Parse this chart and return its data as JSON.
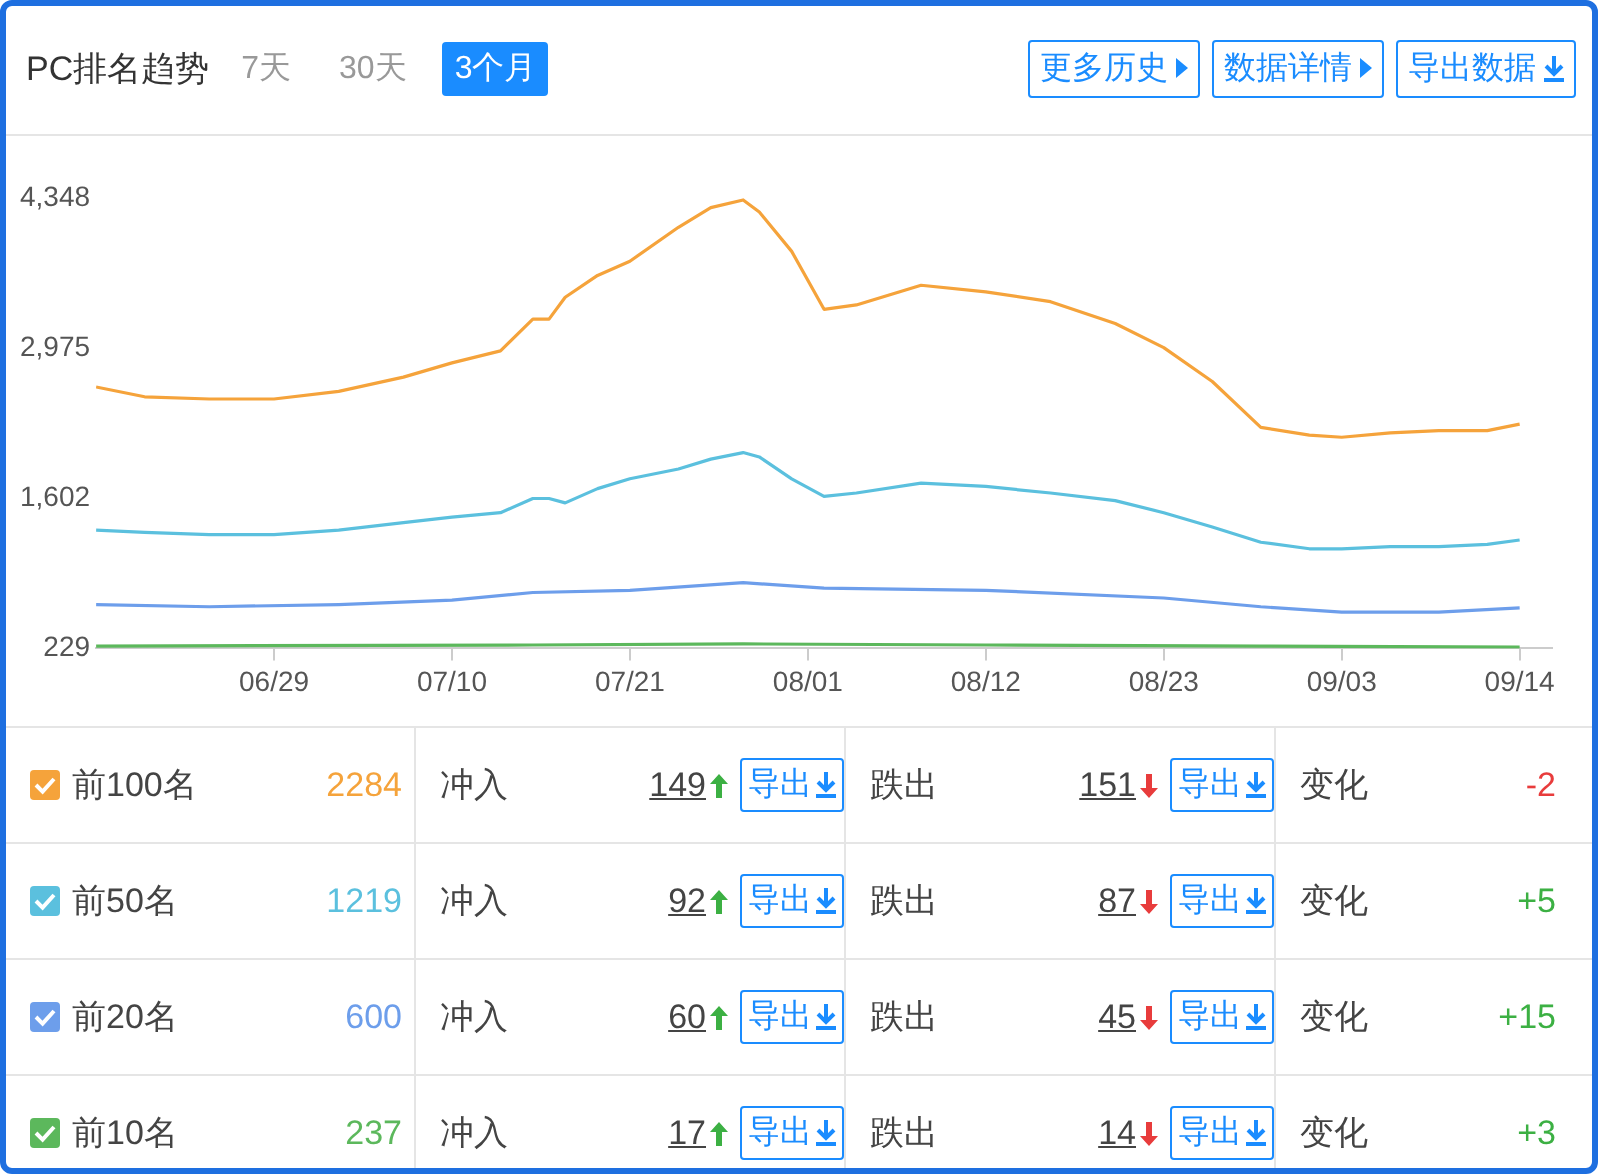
{
  "chart_data": {
    "type": "line",
    "title": "PC排名趋势",
    "annotations": [
      "7天",
      "30天",
      "3个月",
      "更多历史",
      "数据详情",
      "导出数据",
      "2284",
      "冲入",
      "149",
      "导出",
      "跌出",
      "151",
      "导出",
      "变化",
      "-2",
      "1219",
      "冲入",
      "92",
      "导出",
      "跌出",
      "87",
      "导出",
      "变化",
      "+5",
      "600",
      "冲入",
      "60",
      "导出",
      "跌出",
      "45",
      "导出",
      "变化",
      "+15",
      "237",
      "冲入",
      "17",
      "导出",
      "跌出",
      "14",
      "导出",
      "变化",
      "+3"
    ],
    "series": [
      {
        "name": "前100名",
        "color": "#f5a33b",
        "x": [
          "--06-18",
          "--06-21",
          "--06-25",
          "--06-29",
          "--07-03",
          "--07-07",
          "--07-10",
          "--07-13",
          "--07-15",
          "--07-16",
          "--07-17",
          "--07-19",
          "--07-21",
          "--07-24",
          "--07-26",
          "--07-28",
          "--07-29",
          "--07-31",
          "--08-02",
          "--08-04",
          "--08-08",
          "--08-12",
          "--08-16",
          "--08-20",
          "--08-23",
          "--08-26",
          "--08-29",
          "--09-01",
          "--09-03",
          "--09-06",
          "--09-09",
          "--09-12",
          "--09-14"
        ],
        "values": [
          2620,
          2530,
          2510,
          2510,
          2580,
          2710,
          2840,
          2950,
          3240,
          3240,
          3440,
          3640,
          3770,
          4080,
          4260,
          4330,
          4220,
          3860,
          3330,
          3370,
          3550,
          3490,
          3400,
          3200,
          2980,
          2670,
          2250,
          2180,
          2160,
          2200,
          2220,
          2220,
          2280
        ]
      },
      {
        "name": "前50名",
        "color": "#5bc0de",
        "x": [
          "--06-18",
          "--06-21",
          "--06-25",
          "--06-29",
          "--07-03",
          "--07-07",
          "--07-10",
          "--07-13",
          "--07-15",
          "--07-16",
          "--07-17",
          "--07-19",
          "--07-21",
          "--07-24",
          "--07-26",
          "--07-28",
          "--07-29",
          "--07-31",
          "--08-02",
          "--08-04",
          "--08-08",
          "--08-12",
          "--08-16",
          "--08-20",
          "--08-23",
          "--08-26",
          "--08-29",
          "--09-01",
          "--09-03",
          "--09-06",
          "--09-09",
          "--09-12",
          "--09-14"
        ],
        "values": [
          1310,
          1290,
          1270,
          1270,
          1310,
          1380,
          1430,
          1470,
          1600,
          1600,
          1560,
          1690,
          1780,
          1870,
          1960,
          2020,
          1980,
          1780,
          1620,
          1650,
          1740,
          1710,
          1650,
          1580,
          1470,
          1340,
          1200,
          1140,
          1140,
          1160,
          1160,
          1180,
          1220
        ]
      },
      {
        "name": "前20名",
        "color": "#6d9eeb",
        "x": [
          "--06-18",
          "--06-25",
          "--07-03",
          "--07-10",
          "--07-15",
          "--07-21",
          "--07-28",
          "--08-02",
          "--08-12",
          "--08-23",
          "--08-29",
          "--09-03",
          "--09-09",
          "--09-14"
        ],
        "values": [
          630,
          610,
          630,
          670,
          740,
          760,
          830,
          780,
          760,
          690,
          610,
          560,
          560,
          600
        ]
      },
      {
        "name": "前10名",
        "color": "#5cb85c",
        "x": [
          "--06-18",
          "--07-15",
          "--07-28",
          "--08-12",
          "--08-29",
          "--09-14"
        ],
        "values": [
          250,
          260,
          270,
          260,
          250,
          240
        ]
      }
    ],
    "xlim": [
      "--06-18",
      "--09-16"
    ],
    "xticks": [
      {
        "value": "--06-29",
        "label": "06/29"
      },
      {
        "value": "--07-10",
        "label": "07/10"
      },
      {
        "value": "--07-21",
        "label": "07/21"
      },
      {
        "value": "--08-01",
        "label": "08/01"
      },
      {
        "value": "--08-12",
        "label": "08/12"
      },
      {
        "value": "--08-23",
        "label": "08/23"
      },
      {
        "value": "--09-03",
        "label": "09/03"
      },
      {
        "value": "--09-14",
        "label": "09/14"
      }
    ],
    "ylim": [
      229,
      4348
    ],
    "yticks": [
      229,
      {
        "value": 1602,
        "label": "1,602"
      },
      {
        "value": 2975,
        "label": "2,975"
      },
      {
        "value": 4348,
        "label": "4,348"
      }
    ],
    "grid": false,
    "legend": "bottom",
    "marker": "none",
    "line_style": "solid"
  }
}
